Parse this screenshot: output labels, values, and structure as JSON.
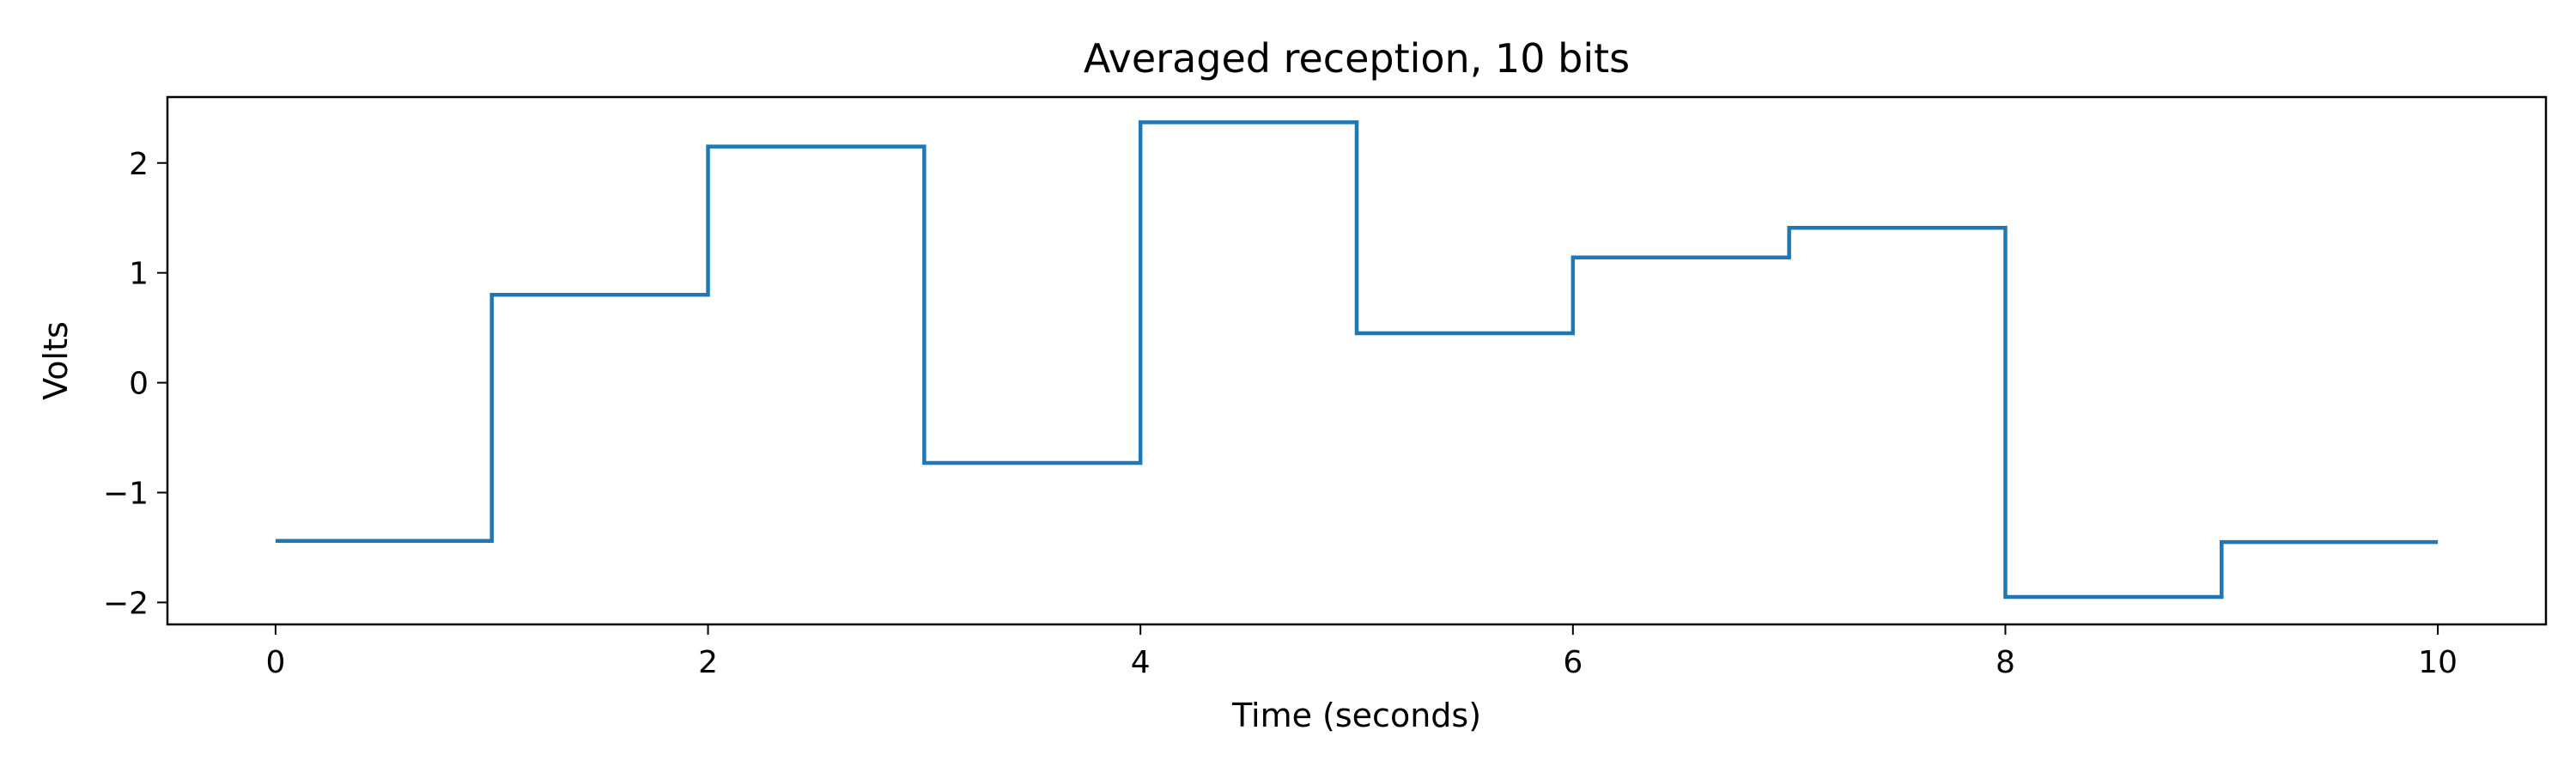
{
  "chart_data": {
    "type": "line",
    "title": "Averaged reception, 10 bits",
    "xlabel": "Time (seconds)",
    "ylabel": "Volts",
    "xlim": [
      -0.5,
      10.5
    ],
    "ylim": [
      -2.2,
      2.6
    ],
    "xticks": [
      0,
      2,
      4,
      6,
      8,
      10
    ],
    "yticks": [
      -2,
      -1,
      0,
      1,
      2
    ],
    "xtick_labels": [
      "0",
      "2",
      "4",
      "6",
      "8",
      "10"
    ],
    "ytick_labels": [
      "−2",
      "−1",
      "0",
      "1",
      "2"
    ],
    "grid": false,
    "step": "post",
    "series": [
      {
        "color": "#1f77b4",
        "x": [
          0,
          1,
          2,
          3,
          4,
          5,
          6,
          7,
          8,
          9,
          10
        ],
        "y": [
          -1.44,
          0.8,
          2.15,
          -0.73,
          2.37,
          0.45,
          1.14,
          1.41,
          -1.95,
          -1.45,
          -1.45
        ]
      }
    ]
  }
}
